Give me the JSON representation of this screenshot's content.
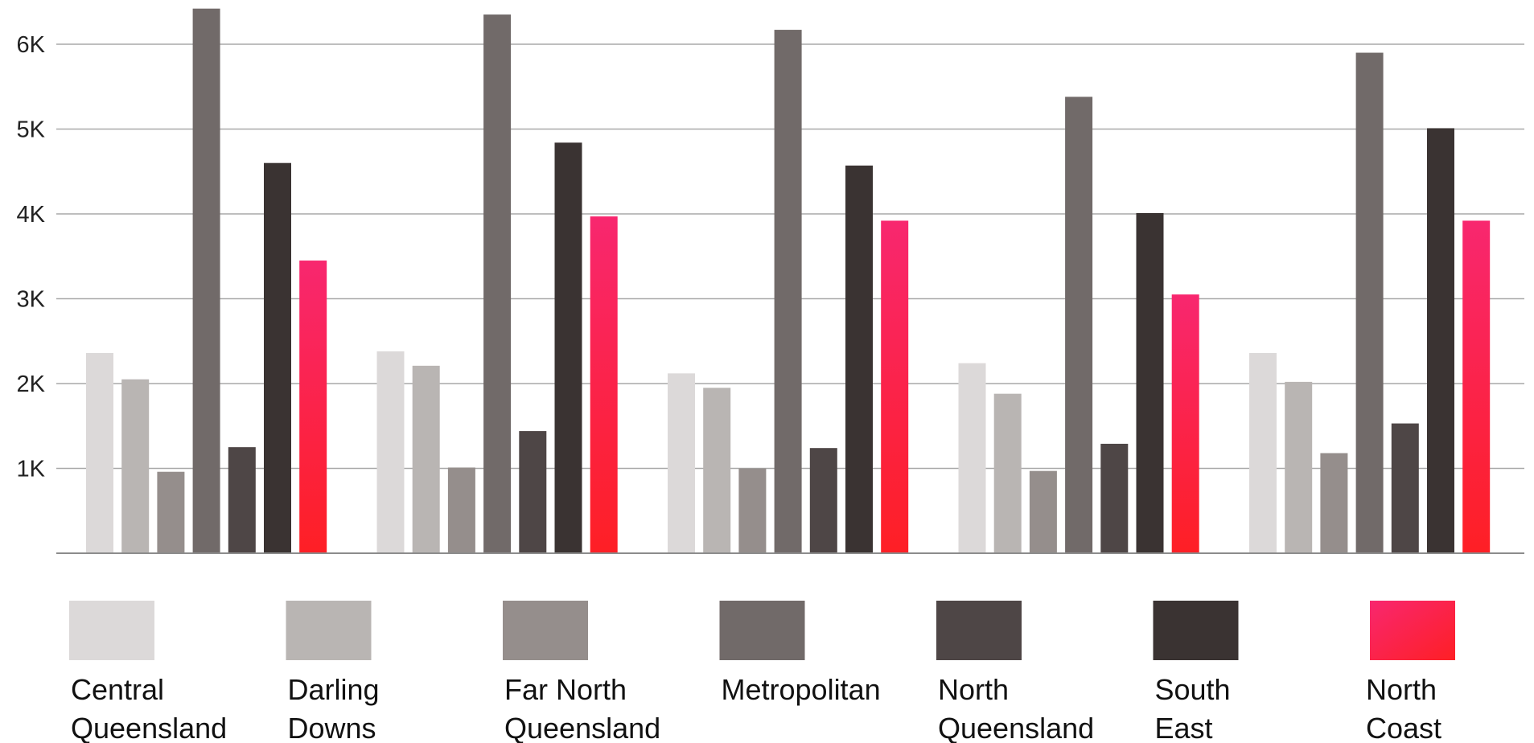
{
  "chart_data": {
    "type": "bar",
    "title": "",
    "xlabel": "",
    "ylabel": "",
    "ylim": [
      0,
      6400
    ],
    "yticks": [
      1000,
      2000,
      3000,
      4000,
      5000,
      6000
    ],
    "ytick_labels": [
      "1K",
      "2K",
      "3K",
      "4K",
      "5K",
      "6K"
    ],
    "grid": true,
    "legend_position": "bottom",
    "categories": [
      "",
      "",
      "",
      "",
      ""
    ],
    "series": [
      {
        "name": "Central Queensland",
        "label_lines": [
          "Central",
          "Queensland"
        ],
        "color": "#dcd9d9",
        "values": [
          2360,
          2380,
          2120,
          2240,
          2360
        ]
      },
      {
        "name": "Darling Downs",
        "label_lines": [
          "Darling",
          "Downs"
        ],
        "color": "#b9b5b3",
        "values": [
          2050,
          2210,
          1950,
          1880,
          2020
        ]
      },
      {
        "name": "Far North Queensland",
        "label_lines": [
          "Far North",
          "Queensland"
        ],
        "color": "#958e8c",
        "values": [
          960,
          1010,
          1000,
          970,
          1180
        ]
      },
      {
        "name": "Metropolitan",
        "label_lines": [
          "Metropolitan"
        ],
        "color": "#716a69",
        "values": [
          6420,
          6350,
          6170,
          5380,
          5900
        ]
      },
      {
        "name": "North Queensland",
        "label_lines": [
          "North",
          "Queensland"
        ],
        "color": "#4e4646",
        "values": [
          1250,
          1440,
          1240,
          1290,
          1530
        ]
      },
      {
        "name": "South East",
        "label_lines": [
          "South",
          "East"
        ],
        "color": "#3a3332",
        "values": [
          4600,
          4840,
          4570,
          4010,
          5010
        ]
      },
      {
        "name": "North Coast",
        "label_lines": [
          "North",
          "Coast"
        ],
        "color": "#f8276f",
        "gradient_end": "#fe1f25",
        "values": [
          3450,
          3970,
          3920,
          3050,
          3920
        ]
      }
    ]
  }
}
